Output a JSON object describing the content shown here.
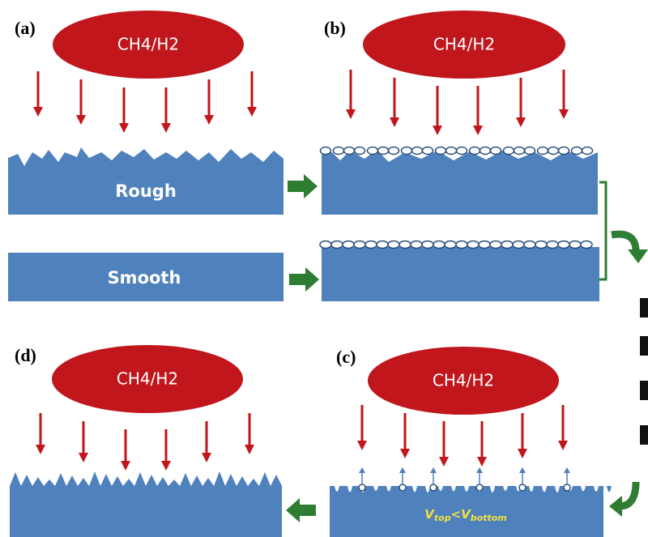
{
  "panels": {
    "a": {
      "label": "(a)",
      "gas": "CH4/H2",
      "rough": "Rough",
      "smooth": "Smooth"
    },
    "b": {
      "label": "(b)",
      "gas": "CH4/H2"
    },
    "c": {
      "label": "(c)",
      "gas": "CH4/H2",
      "formula": {
        "v1": "V",
        "sub1": "top",
        "op": "<",
        "v2": "V",
        "sub2": "bottom"
      }
    },
    "d": {
      "label": "(d)",
      "gas": "CH4/H2"
    }
  }
}
